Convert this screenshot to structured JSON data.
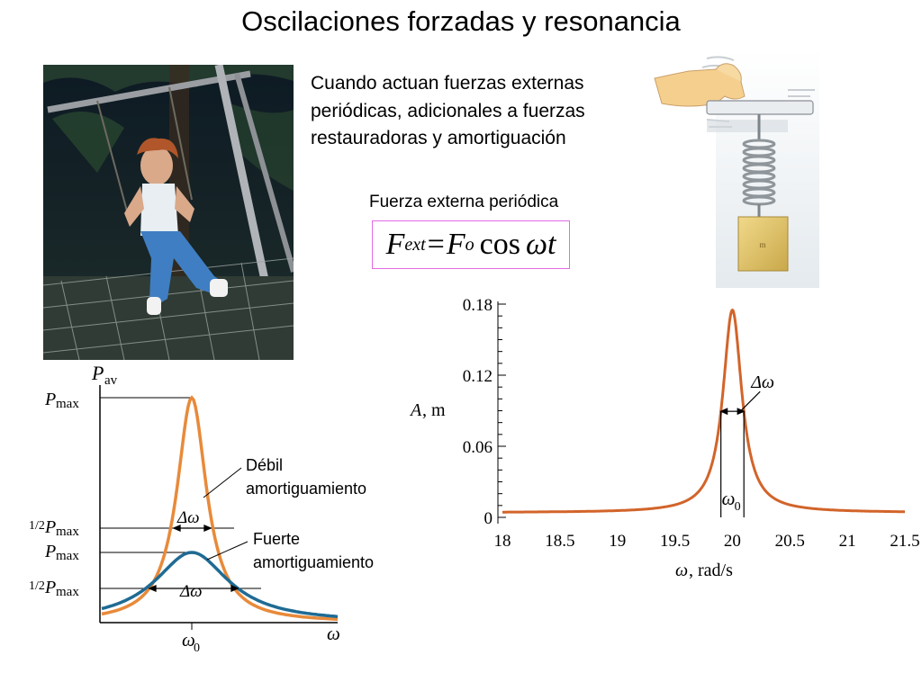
{
  "slide": {
    "title": "Oscilaciones forzadas y resonancia",
    "intro_text": "Cuando actuan fuerzas externas periódicas, adicionales a fuerzas restauradoras y amortiguación",
    "force_caption": "Fuerza externa periódica",
    "formula": {
      "F1": "F",
      "sub_ext": "ext",
      "equals": "=",
      "F2": "F",
      "sub_o": "o",
      "cos": "cos",
      "omega_t": "ωt"
    }
  },
  "power_plot": {
    "y_axis_label": "P",
    "y_axis_sub": "av",
    "x_axis_label": "ω",
    "x_tick_label": "ω",
    "x_tick_sub": "0",
    "p_max_label": "P",
    "max_sub": "max",
    "half_fraction": "1/2",
    "delta_omega_label": "Δω",
    "weak_label_1": "Débil",
    "weak_label_2": "amortiguamiento",
    "strong_label_1": "Fuerte",
    "strong_label_2": "amortiguamiento",
    "colors": {
      "weak": "#e88a3a",
      "strong": "#1f6b94"
    }
  },
  "chart_data": {
    "type": "line",
    "xlabel_symbol": "ω",
    "xlabel_unit": ", rad/s",
    "ylabel_symbol": "A",
    "ylabel_unit": ", m",
    "xlim": [
      18,
      21.5
    ],
    "ylim": [
      0,
      0.18
    ],
    "x_ticks": [
      "18",
      "18.5",
      "19",
      "19.5",
      "20",
      "20.5",
      "21",
      "21.5"
    ],
    "y_ticks": [
      "0",
      "0.06",
      "0.12",
      "0.18"
    ],
    "curve_color": "#d2642a",
    "annotation_delta": "Δω",
    "annotation_omega": "ω",
    "annotation_omega_sub": "0",
    "series": [
      {
        "x": [
          18.0,
          18.5,
          19.0,
          19.5,
          19.7,
          19.8,
          19.9,
          19.95,
          20.0,
          20.05,
          20.1,
          20.2,
          20.3,
          20.5,
          21.0,
          21.5
        ],
        "values": [
          0.005,
          0.007,
          0.011,
          0.023,
          0.039,
          0.058,
          0.095,
          0.132,
          0.175,
          0.132,
          0.095,
          0.058,
          0.039,
          0.022,
          0.011,
          0.007
        ]
      }
    ]
  }
}
